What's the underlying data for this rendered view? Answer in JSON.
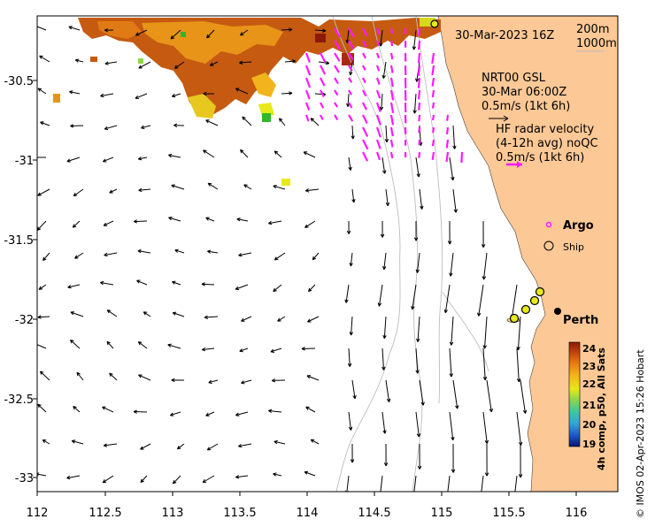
{
  "map": {
    "lon_ticks": [
      "112",
      "112.5",
      "113",
      "113.5",
      "114",
      "114.5",
      "115",
      "115.5",
      "116"
    ],
    "lat_ticks": [
      "-30.5",
      "-31",
      "-31.5",
      "-32",
      "-32.5",
      "-33"
    ],
    "lon_range": [
      112,
      116.3
    ],
    "lat_range": [
      -33.1,
      -30.0
    ]
  },
  "header": {
    "datetime": "30-Mar-2023 16Z",
    "contour_200": "200m",
    "contour_1000": "1000m"
  },
  "legend": {
    "model_name": "NRT00 GSL",
    "model_time": "30-Mar 06:00Z",
    "model_scale": "0.5m/s (1kt 6h)",
    "radar_title": "HF radar velocity",
    "radar_avg": "(4-12h avg) noQC",
    "radar_scale": "0.5m/s (1kt 6h)",
    "argo_label": "Argo",
    "ship_label": "Ship"
  },
  "places": {
    "city": "Perth"
  },
  "colorbar": {
    "title": "4h comp, p50, All Sats",
    "ticks": [
      "24",
      "23",
      "22",
      "21",
      "20",
      "19"
    ],
    "range": [
      19,
      24
    ],
    "colors": [
      "#08126b",
      "#1c52c9",
      "#2fa6d8",
      "#38c8a0",
      "#8fd64a",
      "#e8e81a",
      "#f6b41a",
      "#e87a10",
      "#c2440c",
      "#8c1a08"
    ]
  },
  "credit": "© IMOS 02-Apr-2023 15:26 Hobart",
  "colors": {
    "land": "#fcc896",
    "radar": "#ff1aff",
    "ship": "#e8e81a"
  }
}
